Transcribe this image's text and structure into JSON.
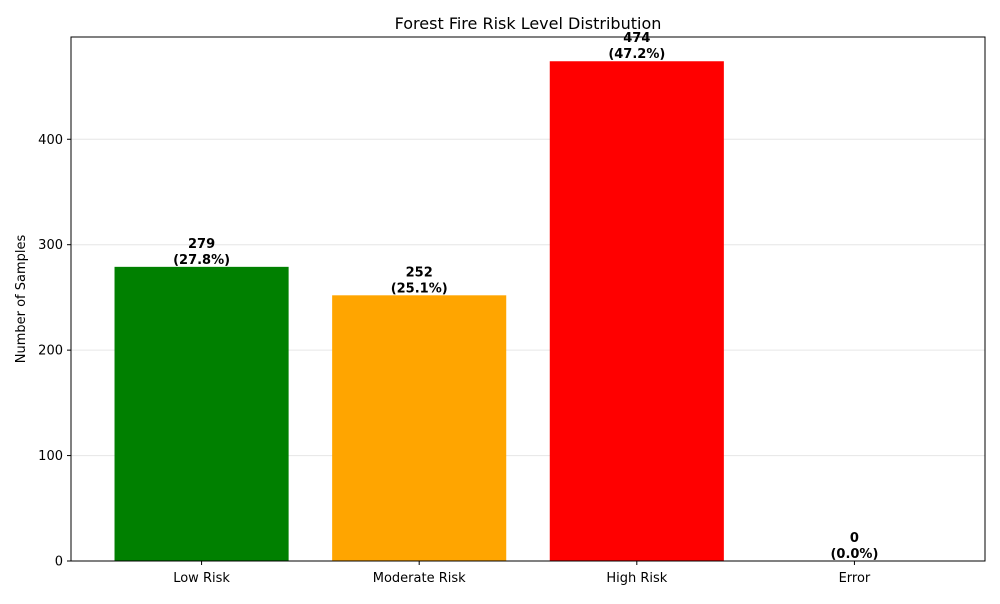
{
  "chart_data": {
    "type": "bar",
    "title": "Forest Fire Risk Level Distribution",
    "xlabel": "",
    "ylabel": "Number of Samples",
    "categories": [
      "Low Risk",
      "Moderate Risk",
      "High Risk",
      "Error"
    ],
    "values": [
      279,
      252,
      474,
      0
    ],
    "data_labels": [
      [
        "279",
        "(27.8%)"
      ],
      [
        "252",
        "(25.1%)"
      ],
      [
        "474",
        "(47.2%)"
      ],
      [
        "0",
        "(0.0%)"
      ]
    ],
    "colors": [
      "#008000",
      "#ffa500",
      "#ff0000",
      "#808080"
    ],
    "ylim": [
      0,
      497
    ],
    "yticks": [
      0,
      100,
      200,
      300,
      400
    ],
    "grid": "y-axis, light"
  }
}
